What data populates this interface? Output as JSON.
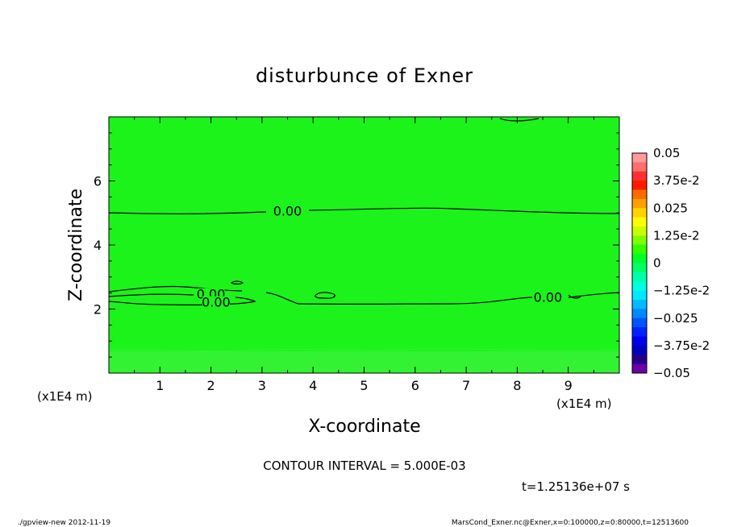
{
  "chart_data": {
    "type": "contour",
    "title": "disturbunce of Exner",
    "xlabel": "X-coordinate",
    "ylabel": "Z-coordinate",
    "x_unit": "(x1E4 m)",
    "y_unit": "(x1E4 m)",
    "xlim": [
      0,
      10
    ],
    "ylim": [
      0,
      8
    ],
    "x_ticks": [
      "1",
      "2",
      "3",
      "4",
      "5",
      "6",
      "7",
      "8",
      "9"
    ],
    "y_ticks": [
      "2",
      "4",
      "6"
    ],
    "contour_interval_text": "CONTOUR INTERVAL = 5.000E-03",
    "time_text": "t=1.25136e+07 s",
    "contour_labels": [
      {
        "text": "0.00",
        "x": 3.5,
        "z": 5.05
      },
      {
        "text": "0.00",
        "x": 2.0,
        "z": 2.45
      },
      {
        "text": "0.00",
        "x": 2.1,
        "z": 2.2
      },
      {
        "text": "0.00",
        "x": 8.6,
        "z": 2.35
      }
    ],
    "colorbar": {
      "labels": [
        "0.05",
        "3.75e-2",
        "0.025",
        "1.25e-2",
        "0",
        "−1.25e-2",
        "−0.025",
        "−3.75e-2",
        "−0.05"
      ],
      "colors_top_to_bottom": [
        "#ff9a9a",
        "#ff6f6f",
        "#ff3030",
        "#ff1a00",
        "#ff6a00",
        "#ffa000",
        "#ffd200",
        "#ffff00",
        "#c8ff00",
        "#80ff00",
        "#33ff00",
        "#00ff2a",
        "#00ff66",
        "#00ffaa",
        "#00ffdd",
        "#00e8ff",
        "#00bbff",
        "#0088ff",
        "#0055ff",
        "#0022ff",
        "#0000ee",
        "#0000bb",
        "#22008a",
        "#6a00a8"
      ]
    },
    "field_color": "#1bf31b",
    "lower_band_color": "#33f233",
    "line_color": "#000000"
  },
  "footer": {
    "left": "./gpview-new  2012-11-19",
    "right": "MarsCond_Exner.nc@Exner,x=0:100000,z=0:80000,t=12513600"
  }
}
